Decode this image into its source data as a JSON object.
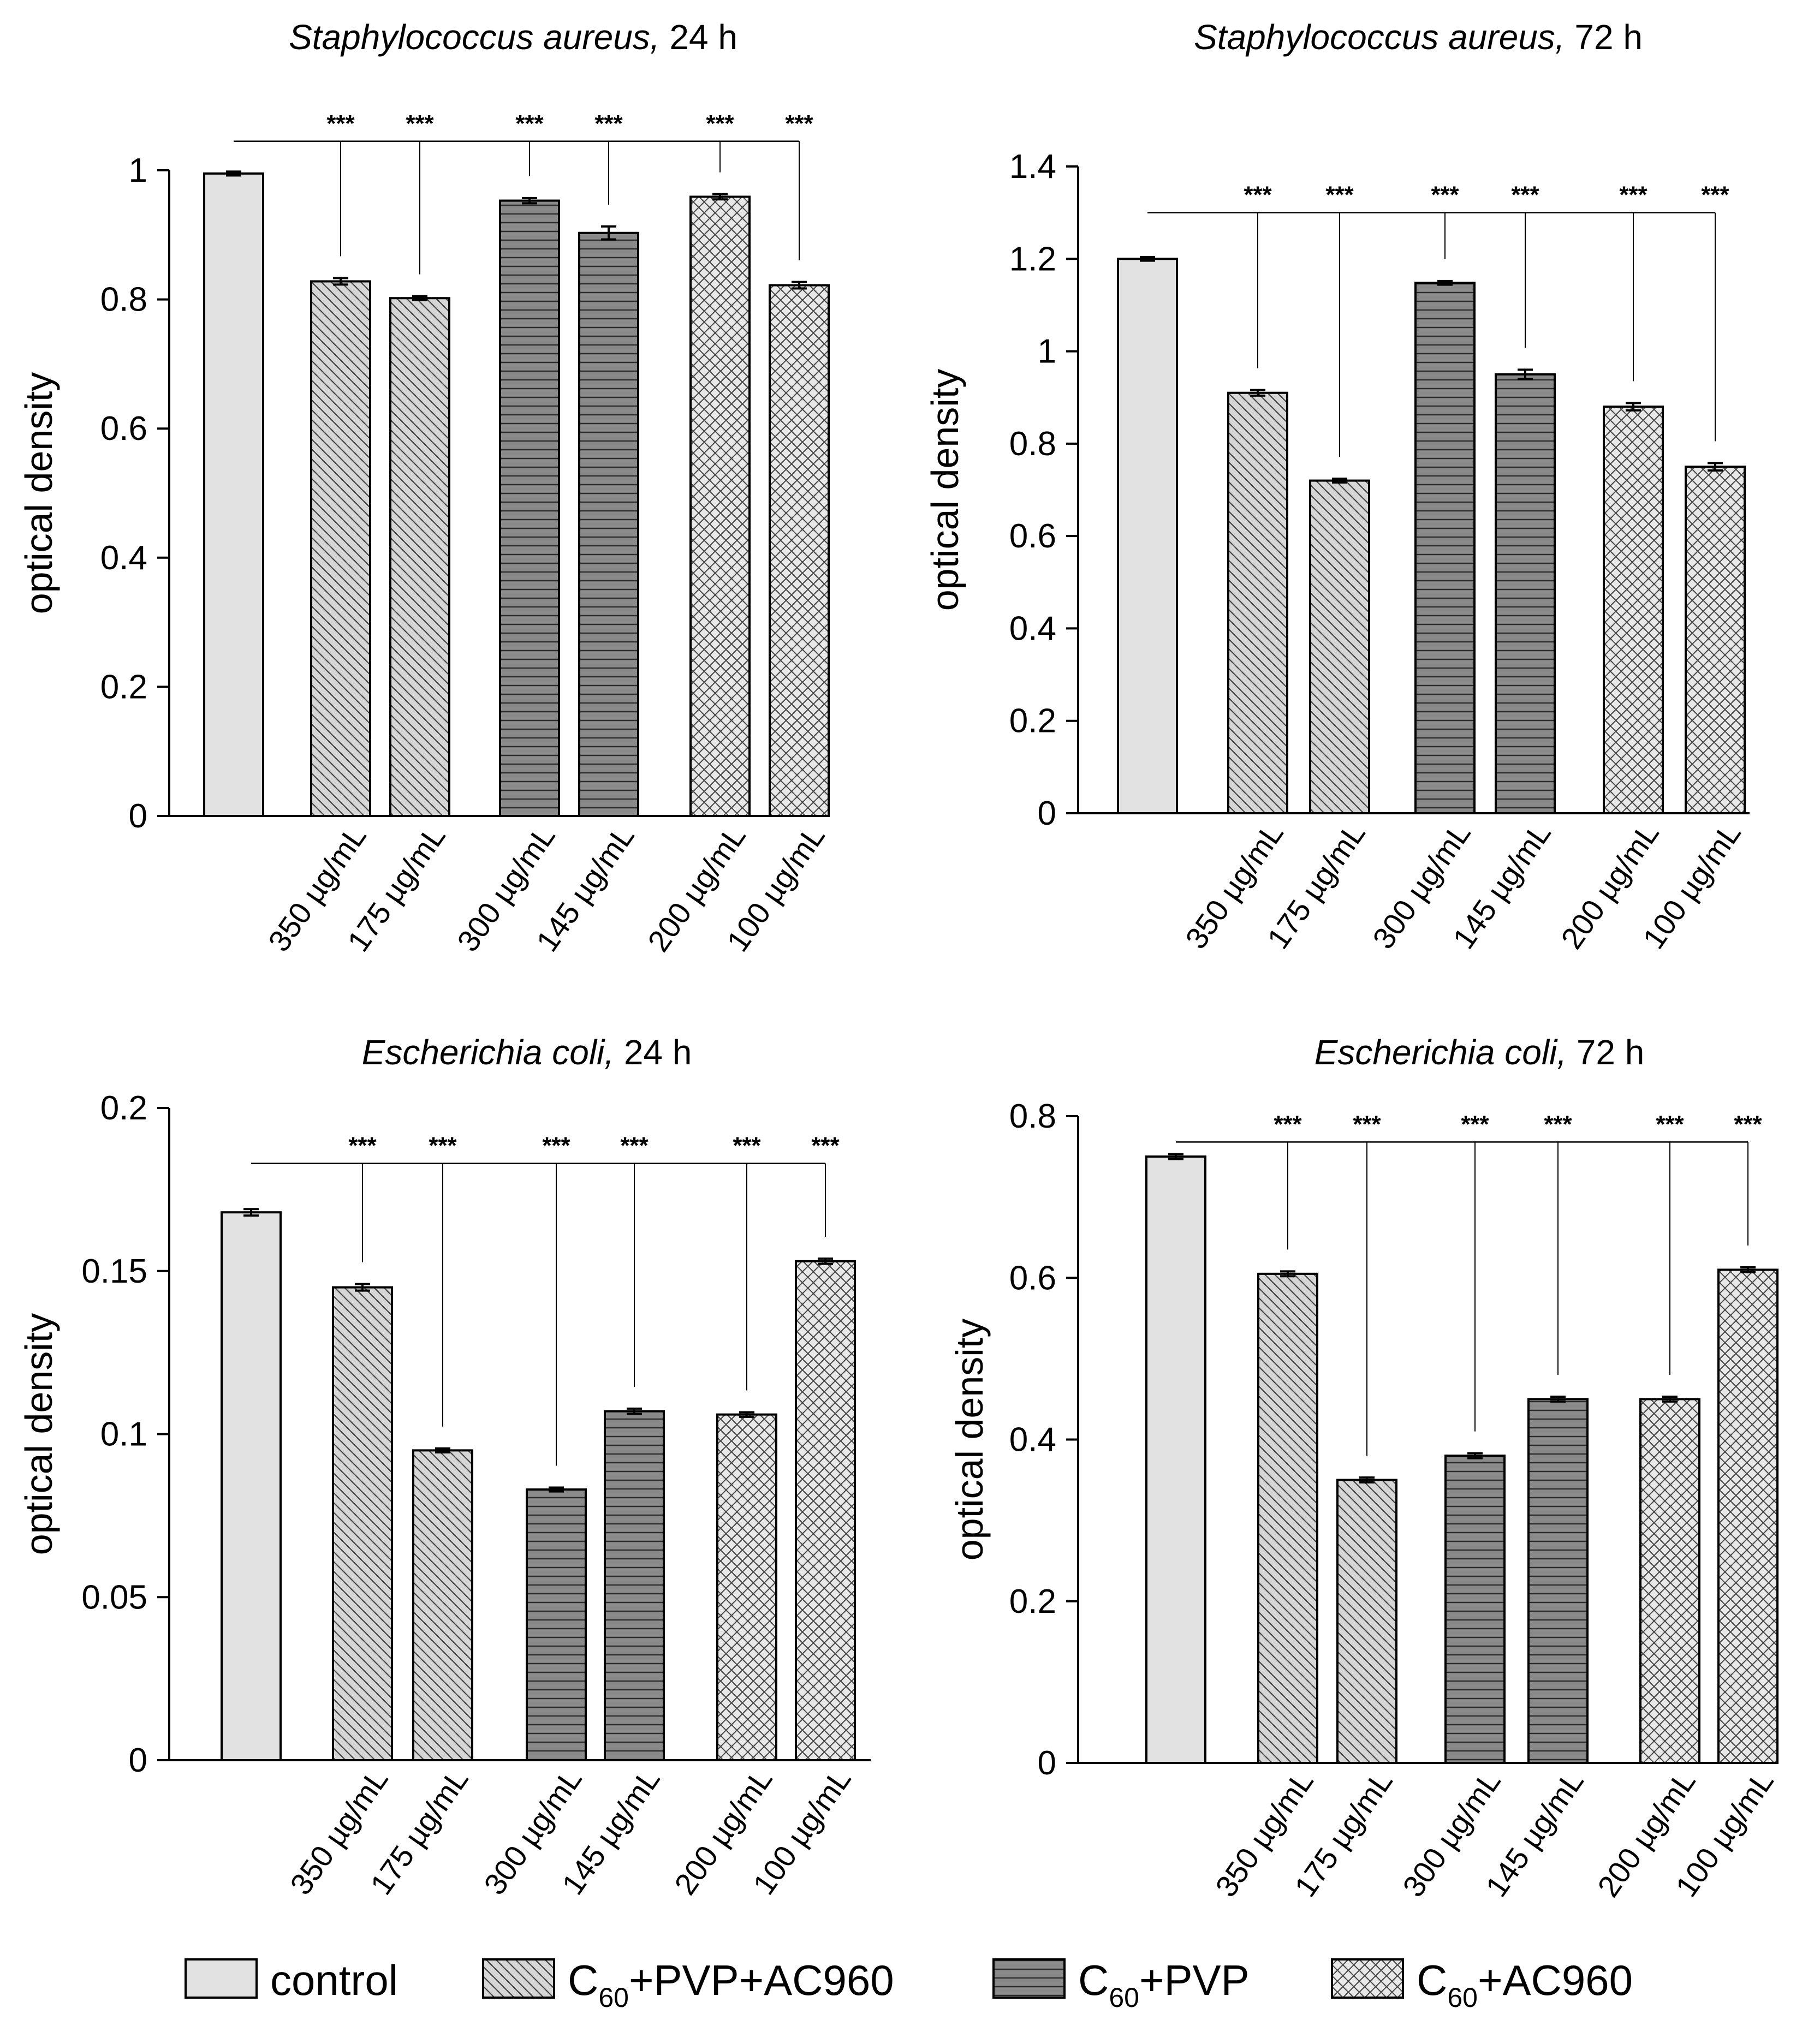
{
  "legend": [
    {
      "name": "control",
      "prefix": "",
      "sub": "",
      "suffix": "control",
      "pattern": "control"
    },
    {
      "name": "C60+PVP+AC960",
      "prefix": "C",
      "sub": "60",
      "suffix": "+PVP+AC960",
      "pattern": "diag"
    },
    {
      "name": "C60+PVP",
      "prefix": "C",
      "sub": "60",
      "suffix": "+PVP",
      "pattern": "horiz"
    },
    {
      "name": "C60+AC960",
      "prefix": "C",
      "sub": "60",
      "suffix": "+AC960",
      "pattern": "cross"
    }
  ],
  "chart_data": [
    {
      "type": "bar",
      "title_italic": "Staphylococcus aureus,",
      "title_plain": " 24 h",
      "ylabel": "optical density",
      "ylim": [
        0,
        1
      ],
      "yticks": [
        0,
        0.2,
        0.4,
        0.6,
        0.8,
        1
      ],
      "ytick_labels": [
        "0",
        "0.2",
        "0.4",
        "0.6",
        "0.8",
        "1"
      ],
      "significance": "***",
      "categories": [
        "",
        "350 µg/mL",
        "175 µg/mL",
        "300 µg/mL",
        "145 µg/mL",
        "200 µg/mL",
        "100 µg/mL"
      ],
      "values": [
        0.995,
        0.828,
        0.802,
        0.953,
        0.903,
        0.959,
        0.822
      ],
      "errors": [
        0.003,
        0.005,
        0.003,
        0.004,
        0.01,
        0.004,
        0.005
      ],
      "groups": [
        "control",
        "diag",
        "diag",
        "horiz",
        "horiz",
        "cross",
        "cross"
      ],
      "sig_line_y": 1.045
    },
    {
      "type": "bar",
      "title_italic": "Staphylococcus aureus,",
      "title_plain": " 72 h",
      "ylabel": "optical density",
      "ylim": [
        0,
        1.4
      ],
      "yticks": [
        0,
        0.2,
        0.4,
        0.6,
        0.8,
        1,
        1.2,
        1.4
      ],
      "ytick_labels": [
        "0",
        "0.2",
        "0.4",
        "0.6",
        "0.8",
        "1",
        "1.2",
        "1.4"
      ],
      "significance": "***",
      "categories": [
        "",
        "350 µg/mL",
        "175 µg/mL",
        "300 µg/mL",
        "145 µg/mL",
        "200 µg/mL",
        "100 µg/mL"
      ],
      "values": [
        1.2,
        0.91,
        0.72,
        1.148,
        0.95,
        0.88,
        0.75
      ],
      "errors": [
        0.004,
        0.006,
        0.004,
        0.004,
        0.01,
        0.008,
        0.008
      ],
      "groups": [
        "control",
        "diag",
        "diag",
        "horiz",
        "horiz",
        "cross",
        "cross"
      ],
      "sig_line_y": 1.3
    },
    {
      "type": "bar",
      "title_italic": "Escherichia coli,",
      "title_plain": " 24 h",
      "ylabel": "optical density",
      "ylim": [
        0,
        0.2
      ],
      "yticks": [
        0,
        0.05,
        0.1,
        0.15,
        0.2
      ],
      "ytick_labels": [
        "0",
        "0.05",
        "0.1",
        "0.15",
        "0.2"
      ],
      "significance": "***",
      "categories": [
        "",
        "350 µg/mL",
        "175 µg/mL",
        "300 µg/mL",
        "145 µg/mL",
        "200 µg/mL",
        "100 µg/mL"
      ],
      "values": [
        0.168,
        0.145,
        0.095,
        0.083,
        0.107,
        0.106,
        0.153
      ],
      "errors": [
        0.001,
        0.001,
        0.0006,
        0.0006,
        0.0008,
        0.0007,
        0.0008
      ],
      "groups": [
        "control",
        "diag",
        "diag",
        "horiz",
        "horiz",
        "cross",
        "cross"
      ],
      "sig_line_y": 0.183
    },
    {
      "type": "bar",
      "title_italic": "Escherichia coli,",
      "title_plain": " 72 h",
      "ylabel": "optical density",
      "ylim": [
        0,
        0.8
      ],
      "yticks": [
        0,
        0.2,
        0.4,
        0.6,
        0.8
      ],
      "ytick_labels": [
        "0",
        "0.2",
        "0.4",
        "0.6",
        "0.8"
      ],
      "significance": "***",
      "categories": [
        "",
        "350 µg/mL",
        "175 µg/mL",
        "300 µg/mL",
        "145 µg/mL",
        "200 µg/mL",
        "100 µg/mL"
      ],
      "values": [
        0.75,
        0.605,
        0.35,
        0.38,
        0.45,
        0.45,
        0.61
      ],
      "errors": [
        0.003,
        0.003,
        0.003,
        0.003,
        0.003,
        0.003,
        0.003
      ],
      "groups": [
        "control",
        "diag",
        "diag",
        "horiz",
        "horiz",
        "cross",
        "cross"
      ],
      "sig_line_y": 0.768
    }
  ]
}
